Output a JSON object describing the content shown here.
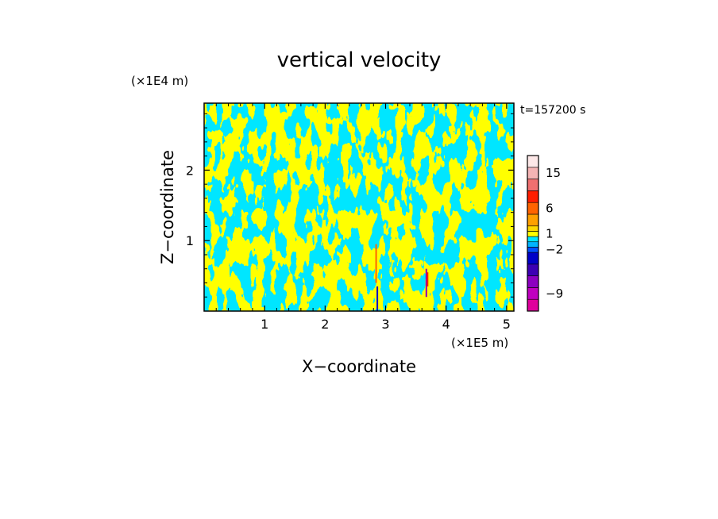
{
  "chart_data": {
    "type": "heatmap",
    "title": "vertical velocity",
    "xlabel": "X−coordinate",
    "ylabel": "Z−coordinate",
    "x_unit": "(×1E5 m)",
    "y_unit": "(×1E4 m)",
    "time_label": "t=157200 s",
    "xlim": [
      0,
      5.12
    ],
    "ylim": [
      0,
      2.95
    ],
    "xticks": [
      1,
      2,
      3,
      4,
      5
    ],
    "yticks": [
      1,
      2
    ],
    "colorbar": {
      "levels": [
        {
          "value": -12,
          "color": "#e0009c"
        },
        {
          "value": -9,
          "color": "#c000c0"
        },
        {
          "value": -6,
          "color": "#8c00c0"
        },
        {
          "value": -4,
          "color": "#3c00b4"
        },
        {
          "value": -3,
          "color": "#0000c8"
        },
        {
          "value": -2,
          "color": "#0050ff"
        },
        {
          "value": -1,
          "color": "#00b4ff"
        },
        {
          "value": 0,
          "color": "#00e6ff"
        },
        {
          "value": 1,
          "color": "#ffff00"
        },
        {
          "value": 2,
          "color": "#ffd700"
        },
        {
          "value": 4,
          "color": "#ffa000"
        },
        {
          "value": 6,
          "color": "#ff6400"
        },
        {
          "value": 9,
          "color": "#ff1e00"
        },
        {
          "value": 12,
          "color": "#f07070"
        },
        {
          "value": 15,
          "color": "#f5b4b4"
        },
        {
          "value": 20,
          "color": "#fde8e8"
        }
      ],
      "tick_labels": [
        "15",
        "6",
        "1",
        "−2",
        "−9"
      ]
    },
    "field_colors": {
      "positive": "#ffff00",
      "negative": "#00e6ff"
    },
    "grid": false,
    "legend": "colorbar-right"
  }
}
